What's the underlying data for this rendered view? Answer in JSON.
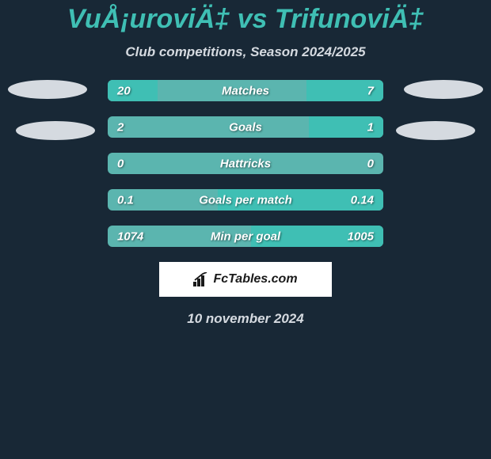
{
  "colors": {
    "background": "#182836",
    "title_color": "#3fbfb4",
    "subtitle_color": "#d5dae0",
    "bar_track": "#5bb5af",
    "bar_left": "#3fbfb4",
    "bar_right": "#3fbfb4",
    "value_text": "#ffffff",
    "attribution_bg": "#ffffff",
    "attribution_text": "#1a1a1a",
    "date_color": "#d5dae0",
    "ellipse_color": "#d5dae0"
  },
  "title": "VuÅ¡uroviÄ‡ vs TrifunoviÄ‡",
  "subtitle": "Club competitions, Season 2024/2025",
  "rows": [
    {
      "label": "Matches",
      "left_value": "20",
      "right_value": "7",
      "left_pct": 18,
      "right_pct": 28
    },
    {
      "label": "Goals",
      "left_value": "2",
      "right_value": "1",
      "left_pct": 0,
      "right_pct": 27
    },
    {
      "label": "Hattricks",
      "left_value": "0",
      "right_value": "0",
      "left_pct": 0,
      "right_pct": 0
    },
    {
      "label": "Goals per match",
      "left_value": "0.1",
      "right_value": "0.14",
      "left_pct": 0,
      "right_pct": 60
    },
    {
      "label": "Min per goal",
      "left_value": "1074",
      "right_value": "1005",
      "left_pct": 0,
      "right_pct": 48
    }
  ],
  "attribution": "FcTables.com",
  "date": "10 november 2024"
}
